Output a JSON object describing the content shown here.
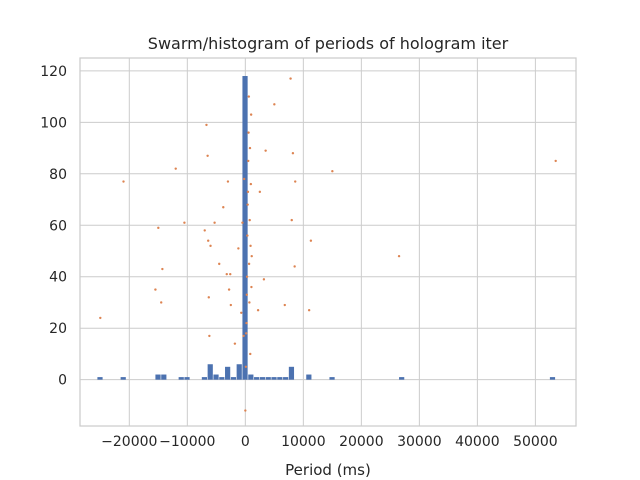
{
  "chart_data": {
    "type": "bar",
    "title": "Swarm/histogram of periods of hologram iter",
    "xlabel": "Period (ms)",
    "ylabel": "",
    "xlim": [
      -28500,
      57000
    ],
    "ylim": [
      -18,
      125
    ],
    "x_ticks": [
      {
        "value": -20000,
        "label": "−20000"
      },
      {
        "value": -10000,
        "label": "−10000"
      },
      {
        "value": 0,
        "label": "0"
      },
      {
        "value": 10000,
        "label": "10000"
      },
      {
        "value": 20000,
        "label": "20000"
      },
      {
        "value": 30000,
        "label": "30000"
      },
      {
        "value": 40000,
        "label": "40000"
      },
      {
        "value": 50000,
        "label": "50000"
      }
    ],
    "y_ticks": [
      {
        "value": 0,
        "label": "0"
      },
      {
        "value": 20,
        "label": "20"
      },
      {
        "value": 40,
        "label": "40"
      },
      {
        "value": 60,
        "label": "60"
      },
      {
        "value": 80,
        "label": "80"
      },
      {
        "value": 100,
        "label": "100"
      },
      {
        "value": 120,
        "label": "120"
      }
    ],
    "grid": true,
    "histogram": {
      "bin_width": 1000,
      "bins": [
        {
          "start": -25500,
          "count": 1
        },
        {
          "start": -21500,
          "count": 1
        },
        {
          "start": -15500,
          "count": 2
        },
        {
          "start": -14500,
          "count": 2
        },
        {
          "start": -11500,
          "count": 1
        },
        {
          "start": -10500,
          "count": 1
        },
        {
          "start": -7500,
          "count": 1
        },
        {
          "start": -6500,
          "count": 6
        },
        {
          "start": -5500,
          "count": 2
        },
        {
          "start": -4500,
          "count": 1
        },
        {
          "start": -3500,
          "count": 5
        },
        {
          "start": -2500,
          "count": 1
        },
        {
          "start": -1500,
          "count": 6
        },
        {
          "start": -500,
          "count": 118
        },
        {
          "start": 500,
          "count": 2
        },
        {
          "start": 1500,
          "count": 1
        },
        {
          "start": 2500,
          "count": 1
        },
        {
          "start": 3500,
          "count": 1
        },
        {
          "start": 4500,
          "count": 1
        },
        {
          "start": 5500,
          "count": 1
        },
        {
          "start": 6500,
          "count": 1
        },
        {
          "start": 7500,
          "count": 5
        },
        {
          "start": 10500,
          "count": 2
        },
        {
          "start": 14500,
          "count": 1
        },
        {
          "start": 26500,
          "count": 1
        },
        {
          "start": 52500,
          "count": 1
        }
      ]
    },
    "swarm_points": [
      [
        -25000,
        24
      ],
      [
        -21000,
        77
      ],
      [
        -15500,
        35
      ],
      [
        -15000,
        59
      ],
      [
        -14500,
        30
      ],
      [
        -14300,
        43
      ],
      [
        -12000,
        82
      ],
      [
        -10500,
        61
      ],
      [
        -7000,
        58
      ],
      [
        -6700,
        99
      ],
      [
        -6500,
        87
      ],
      [
        -6400,
        54
      ],
      [
        -6300,
        32
      ],
      [
        -6200,
        17
      ],
      [
        -6000,
        52
      ],
      [
        -5300,
        61
      ],
      [
        -4500,
        45
      ],
      [
        -3800,
        67
      ],
      [
        -3200,
        41
      ],
      [
        -3000,
        77
      ],
      [
        -2800,
        35
      ],
      [
        -2600,
        41
      ],
      [
        -2500,
        29
      ],
      [
        -1800,
        14
      ],
      [
        -1200,
        51
      ],
      [
        -700,
        26
      ],
      [
        -500,
        61
      ],
      [
        -300,
        17
      ],
      [
        -200,
        78
      ],
      [
        0,
        -12
      ],
      [
        100,
        5
      ],
      [
        150,
        18
      ],
      [
        200,
        22
      ],
      [
        250,
        33
      ],
      [
        300,
        40
      ],
      [
        350,
        56
      ],
      [
        400,
        68
      ],
      [
        450,
        73
      ],
      [
        500,
        85
      ],
      [
        550,
        96
      ],
      [
        600,
        110
      ],
      [
        650,
        45
      ],
      [
        700,
        30
      ],
      [
        750,
        62
      ],
      [
        800,
        90
      ],
      [
        850,
        10
      ],
      [
        900,
        52
      ],
      [
        950,
        76
      ],
      [
        1000,
        103
      ],
      [
        1050,
        36
      ],
      [
        1100,
        48
      ],
      [
        2200,
        27
      ],
      [
        2500,
        73
      ],
      [
        3200,
        39
      ],
      [
        3500,
        89
      ],
      [
        5000,
        107
      ],
      [
        6800,
        29
      ],
      [
        7800,
        117
      ],
      [
        8000,
        62
      ],
      [
        8200,
        88
      ],
      [
        8500,
        44
      ],
      [
        8600,
        77
      ],
      [
        11000,
        27
      ],
      [
        11300,
        54
      ],
      [
        15000,
        81
      ],
      [
        26500,
        48
      ],
      [
        53500,
        85
      ]
    ],
    "colors": {
      "bar": "#4c72b0",
      "point": "#dd8452",
      "grid": "#cccccc",
      "axes_edge": "#cccccc",
      "text": "#262626"
    }
  }
}
